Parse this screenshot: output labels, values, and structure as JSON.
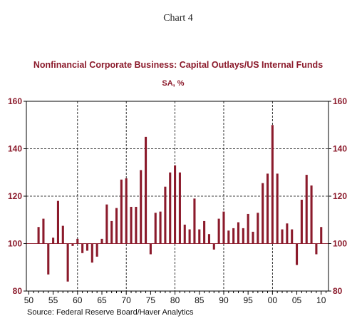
{
  "caption": "Chart 4",
  "chart_data": {
    "type": "bar",
    "title": "Nonfinancial Corporate Business: Capital Outlays/US Internal Funds",
    "subtitle": "SA, %",
    "xlabel": "",
    "ylabel": "",
    "baseline": 100,
    "ylim": [
      80,
      160
    ],
    "yticks": [
      "160",
      "140",
      "120",
      "100",
      "80"
    ],
    "xlim": [
      1949.5,
      2011.5
    ],
    "xticks": [
      "50",
      "55",
      "60",
      "65",
      "70",
      "75",
      "80",
      "85",
      "90",
      "95",
      "00",
      "05",
      "10"
    ],
    "grid": true,
    "x": [
      1952,
      1953,
      1954,
      1955,
      1956,
      1957,
      1958,
      1959,
      1960,
      1961,
      1962,
      1963,
      1964,
      1965,
      1966,
      1967,
      1968,
      1969,
      1970,
      1971,
      1972,
      1973,
      1974,
      1975,
      1976,
      1977,
      1978,
      1979,
      1980,
      1981,
      1982,
      1983,
      1984,
      1985,
      1986,
      1987,
      1988,
      1989,
      1990,
      1991,
      1992,
      1993,
      1994,
      1995,
      1996,
      1997,
      1998,
      1999,
      2000,
      2001,
      2002,
      2003,
      2004,
      2005,
      2006,
      2007,
      2008,
      2009,
      2010
    ],
    "values": [
      107,
      110.5,
      87,
      102.5,
      118,
      107.5,
      84,
      99,
      102,
      96,
      97,
      92,
      94.5,
      102,
      116.5,
      109.5,
      115,
      127,
      127.5,
      115.5,
      115.5,
      131,
      145,
      95.5,
      113,
      113.5,
      124,
      130,
      133,
      130,
      108,
      106,
      119,
      106,
      109.5,
      104,
      97.5,
      110.5,
      113.5,
      105.5,
      106.5,
      109,
      106.5,
      112.5,
      105,
      113,
      125.5,
      129.5,
      150,
      129.5,
      106,
      108.5,
      106,
      91,
      118.5,
      129,
      124.5,
      95.5,
      107
    ],
    "bar_color": "#8b1a2b",
    "source": "Source:  Federal Reserve Board/Haver Analytics"
  }
}
